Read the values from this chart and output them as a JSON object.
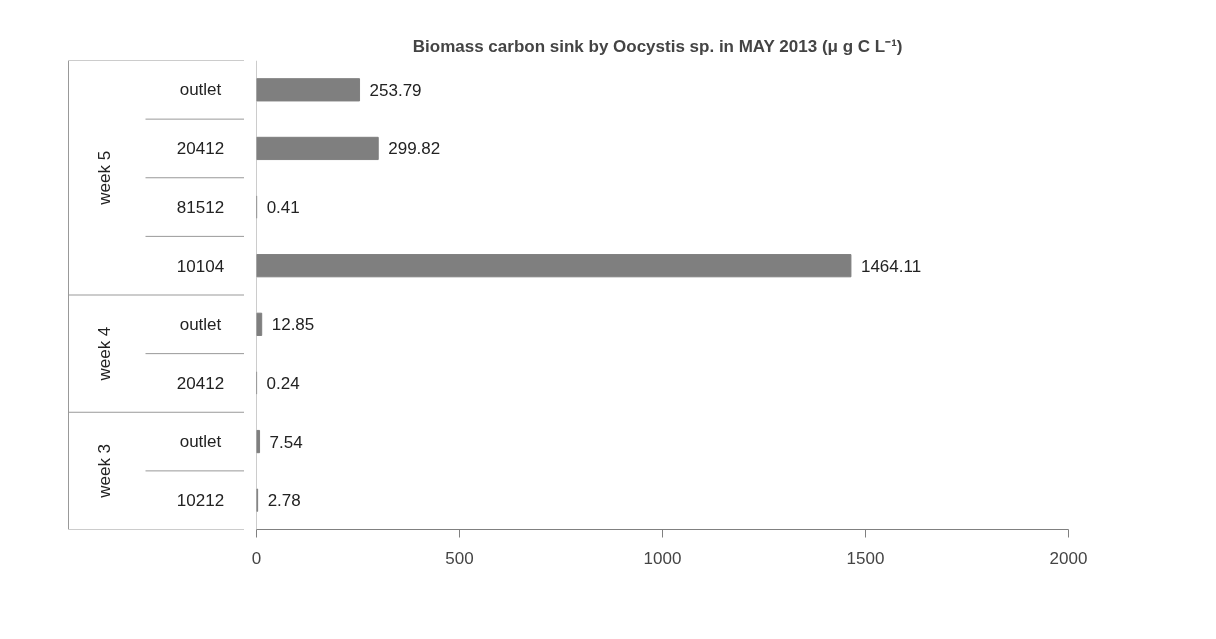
{
  "chart_data": {
    "type": "bar",
    "orientation": "horizontal",
    "title": "Biomass carbon sink  by Oocystis sp.  in MAY 2013 (μ g C L⁻¹)",
    "categories": [
      "outlet",
      "20412",
      "81512",
      "10104",
      "outlet",
      "20412",
      "outlet",
      "10212"
    ],
    "values": [
      253.79,
      299.82,
      0.41,
      1464.11,
      12.85,
      0.24,
      7.54,
      2.78
    ],
    "color": "#7f7f7f",
    "annotations": [
      "week 5",
      "week 4",
      "week 3"
    ],
    "xlim": [
      0,
      2000
    ],
    "xticks": [
      0,
      500,
      1000,
      1500,
      2000
    ],
    "grid": false,
    "data_labels": true
  }
}
